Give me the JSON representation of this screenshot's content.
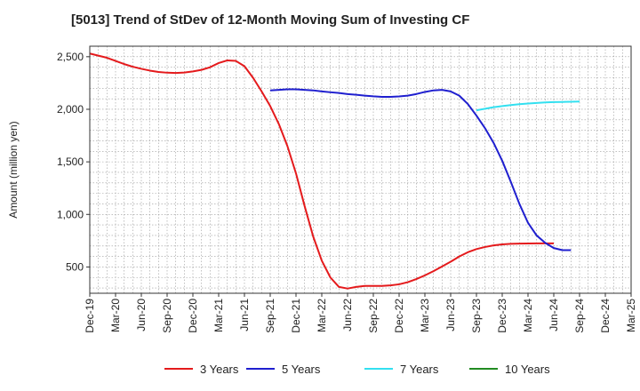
{
  "chart_data": {
    "type": "line",
    "title": "[5013]  Trend of StDev of 12-Month Moving Sum of Investing CF",
    "ylabel": "Amount (million yen)",
    "xlabel": "",
    "ylim": [
      250,
      2600
    ],
    "y_ticks": [
      500,
      1000,
      1500,
      2000,
      2500
    ],
    "y_tick_labels": [
      "500",
      "1,000",
      "1,500",
      "2,000",
      "2,500"
    ],
    "x_tick_labels": [
      "Dec-19",
      "Mar-20",
      "Jun-20",
      "Sep-20",
      "Dec-20",
      "Mar-21",
      "Jun-21",
      "Sep-21",
      "Dec-21",
      "Mar-22",
      "Jun-22",
      "Sep-22",
      "Dec-22",
      "Mar-23",
      "Jun-23",
      "Sep-23",
      "Dec-23",
      "Mar-24",
      "Jun-24",
      "Sep-24",
      "Dec-24",
      "Mar-25"
    ],
    "grid": true,
    "legend_position": "bottom",
    "series": [
      {
        "name": "3 Years",
        "color": "#e41a1c",
        "start": "Dec-19",
        "values": [
          2530,
          2510,
          2490,
          2460,
          2430,
          2405,
          2385,
          2368,
          2355,
          2348,
          2345,
          2350,
          2360,
          2375,
          2400,
          2440,
          2465,
          2460,
          2410,
          2300,
          2170,
          2030,
          1860,
          1650,
          1390,
          1080,
          790,
          560,
          400,
          310,
          295,
          310,
          320,
          320,
          320,
          325,
          335,
          355,
          385,
          420,
          460,
          505,
          550,
          600,
          640,
          670,
          690,
          705,
          715,
          720,
          722,
          723,
          724,
          724,
          724
        ]
      },
      {
        "name": "5 Years",
        "color": "#1f1fcf",
        "start": "Sep-21",
        "values": [
          2180,
          2185,
          2190,
          2190,
          2185,
          2180,
          2170,
          2162,
          2155,
          2145,
          2138,
          2130,
          2123,
          2118,
          2118,
          2122,
          2130,
          2145,
          2165,
          2180,
          2185,
          2170,
          2130,
          2050,
          1940,
          1820,
          1680,
          1510,
          1310,
          1100,
          920,
          800,
          730,
          680,
          660,
          660
        ]
      },
      {
        "name": "7 Years",
        "color": "#33e0f0",
        "start": "Sep-23",
        "values": [
          1990,
          2005,
          2020,
          2030,
          2040,
          2048,
          2055,
          2060,
          2065,
          2068,
          2070,
          2072,
          2074
        ]
      },
      {
        "name": "10 Years",
        "color": "#228b22",
        "start": "Sep-24",
        "values": []
      }
    ]
  }
}
